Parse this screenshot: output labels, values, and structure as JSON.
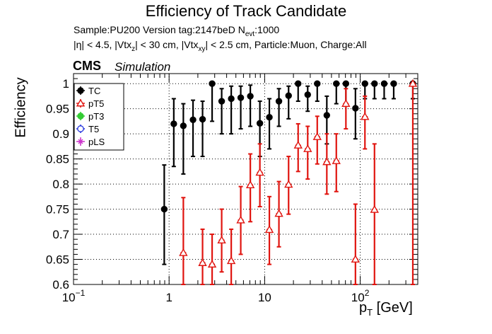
{
  "chart_data": {
    "type": "scatter",
    "title": "Efficiency of Track Candidate",
    "subtitle_lines": [
      {
        "pre": "Sample:PU200   Version tag:2147beD  N",
        "sub": "evt",
        "post": ":1000"
      },
      {
        "parts": [
          {
            "t": "|η| < 4.5, |Vtx"
          },
          {
            "sub": "z"
          },
          {
            "t": "| < 30 cm, |Vtx"
          },
          {
            "sub": "xy"
          },
          {
            "t": "| < 2.5 cm, Particle:Muon, Charge:All"
          }
        ]
      }
    ],
    "cms_label": "CMS",
    "sim_label": "Simulation",
    "ylabel": "Efficiency",
    "xlabel": {
      "base": "p",
      "sub": "T",
      "unit": " [GeV]"
    },
    "xscale": "log",
    "xlim": [
      0.1,
      400
    ],
    "ylim": [
      0.6,
      1.02
    ],
    "grid": true,
    "legend_position": "top-left",
    "x_ticks": [
      {
        "v": 0.1,
        "base": "10",
        "sup": "−1"
      },
      {
        "v": 1,
        "base": "1",
        "sup": ""
      },
      {
        "v": 10,
        "base": "10",
        "sup": ""
      },
      {
        "v": 100,
        "base": "10",
        "sup": "2"
      }
    ],
    "y_ticks": [
      {
        "v": 0.6,
        "label": "0.6"
      },
      {
        "v": 0.65,
        "label": "0.65"
      },
      {
        "v": 0.7,
        "label": "0.7"
      },
      {
        "v": 0.75,
        "label": "0.75"
      },
      {
        "v": 0.8,
        "label": "0.8"
      },
      {
        "v": 0.85,
        "label": "0.85"
      },
      {
        "v": 0.9,
        "label": "0.9"
      },
      {
        "v": 0.95,
        "label": "0.95"
      },
      {
        "v": 1,
        "label": "1"
      }
    ],
    "series": [
      {
        "name": "TC",
        "color": "#000000",
        "marker": "filled-circle",
        "points": [
          {
            "x": 0.89,
            "y": 0.75,
            "lo": 0.64,
            "hi": 0.838
          },
          {
            "x": 1.12,
            "y": 0.92,
            "lo": 0.835,
            "hi": 0.97
          },
          {
            "x": 1.41,
            "y": 0.916,
            "lo": 0.82,
            "hi": 0.96
          },
          {
            "x": 1.78,
            "y": 0.928,
            "lo": 0.855,
            "hi": 0.967
          },
          {
            "x": 2.24,
            "y": 0.929,
            "lo": 0.855,
            "hi": 0.965
          },
          {
            "x": 2.82,
            "y": 1.0,
            "lo": 0.925,
            "hi": 1.0
          },
          {
            "x": 3.55,
            "y": 0.965,
            "lo": 0.9,
            "hi": 0.99
          },
          {
            "x": 4.47,
            "y": 0.97,
            "lo": 0.9,
            "hi": 0.995
          },
          {
            "x": 5.62,
            "y": 0.972,
            "lo": 0.91,
            "hi": 0.995
          },
          {
            "x": 7.08,
            "y": 0.975,
            "lo": 0.915,
            "hi": 0.997
          },
          {
            "x": 8.91,
            "y": 0.921,
            "lo": 0.855,
            "hi": 0.965
          },
          {
            "x": 11.2,
            "y": 0.933,
            "lo": 0.87,
            "hi": 0.97
          },
          {
            "x": 14.1,
            "y": 0.965,
            "lo": 0.915,
            "hi": 0.99
          },
          {
            "x": 17.8,
            "y": 0.976,
            "lo": 0.93,
            "hi": 0.995
          },
          {
            "x": 22.4,
            "y": 1.0,
            "lo": 0.965,
            "hi": 1.0
          },
          {
            "x": 28.2,
            "y": 0.978,
            "lo": 0.945,
            "hi": 0.995
          },
          {
            "x": 35.5,
            "y": 1.0,
            "lo": 0.965,
            "hi": 1.0
          },
          {
            "x": 44.7,
            "y": 0.937,
            "lo": 0.88,
            "hi": 0.975
          },
          {
            "x": 56.2,
            "y": 1.0,
            "lo": 0.96,
            "hi": 1.0
          },
          {
            "x": 70.8,
            "y": 1.0,
            "lo": 0.955,
            "hi": 1.0
          },
          {
            "x": 89.1,
            "y": 0.951,
            "lo": 0.89,
            "hi": 0.99
          },
          {
            "x": 112,
            "y": 1.0,
            "lo": 0.97,
            "hi": 1.0
          },
          {
            "x": 141,
            "y": 1.0,
            "lo": 0.97,
            "hi": 1.0
          },
          {
            "x": 178,
            "y": 1.0,
            "lo": 0.97,
            "hi": 1.0
          },
          {
            "x": 224,
            "y": 1.0,
            "lo": 0.97,
            "hi": 1.0
          },
          {
            "x": 355,
            "y": 1.0,
            "lo": 0.97,
            "hi": 1.0
          }
        ]
      },
      {
        "name": "pT5",
        "color": "#e0140f",
        "marker": "open-triangle",
        "points": [
          {
            "x": 1.41,
            "y": 0.663,
            "lo": 0.56,
            "hi": 0.773
          },
          {
            "x": 2.24,
            "y": 0.643,
            "lo": 0.58,
            "hi": 0.71
          },
          {
            "x": 2.82,
            "y": 0.64,
            "lo": 0.58,
            "hi": 0.7
          },
          {
            "x": 3.55,
            "y": 0.688,
            "lo": 0.625,
            "hi": 0.75
          },
          {
            "x": 4.47,
            "y": 0.647,
            "lo": 0.585,
            "hi": 0.71
          },
          {
            "x": 5.62,
            "y": 0.728,
            "lo": 0.66,
            "hi": 0.795
          },
          {
            "x": 7.08,
            "y": 0.798,
            "lo": 0.725,
            "hi": 0.86
          },
          {
            "x": 8.91,
            "y": 0.823,
            "lo": 0.755,
            "hi": 0.88
          },
          {
            "x": 11.2,
            "y": 0.709,
            "lo": 0.64,
            "hi": 0.775
          },
          {
            "x": 14.1,
            "y": 0.741,
            "lo": 0.675,
            "hi": 0.805
          },
          {
            "x": 17.8,
            "y": 0.799,
            "lo": 0.74,
            "hi": 0.855
          },
          {
            "x": 22.4,
            "y": 0.877,
            "lo": 0.825,
            "hi": 0.92
          },
          {
            "x": 28.2,
            "y": 0.87,
            "lo": 0.81,
            "hi": 0.915
          },
          {
            "x": 35.5,
            "y": 0.894,
            "lo": 0.84,
            "hi": 0.935
          },
          {
            "x": 44.7,
            "y": 0.844,
            "lo": 0.78,
            "hi": 0.9
          },
          {
            "x": 56.2,
            "y": 0.846,
            "lo": 0.785,
            "hi": 0.9
          },
          {
            "x": 70.8,
            "y": 0.96,
            "lo": 0.91,
            "hi": 0.99
          },
          {
            "x": 89.1,
            "y": 0.65,
            "lo": 0.55,
            "hi": 0.76
          },
          {
            "x": 112,
            "y": 0.934,
            "lo": 0.87,
            "hi": 0.975
          },
          {
            "x": 141,
            "y": 0.749,
            "lo": 0.6,
            "hi": 0.88
          },
          {
            "x": 355,
            "y": 1.0,
            "lo": 0.6,
            "hi": 1.0
          }
        ]
      },
      {
        "name": "pT3",
        "color": "#33cc33",
        "marker": "filled-circle",
        "points": []
      },
      {
        "name": "T5",
        "color": "#2233dd",
        "marker": "open-circle",
        "points": []
      },
      {
        "name": "pLS",
        "color": "#cc33cc",
        "marker": "star",
        "points": []
      }
    ]
  }
}
